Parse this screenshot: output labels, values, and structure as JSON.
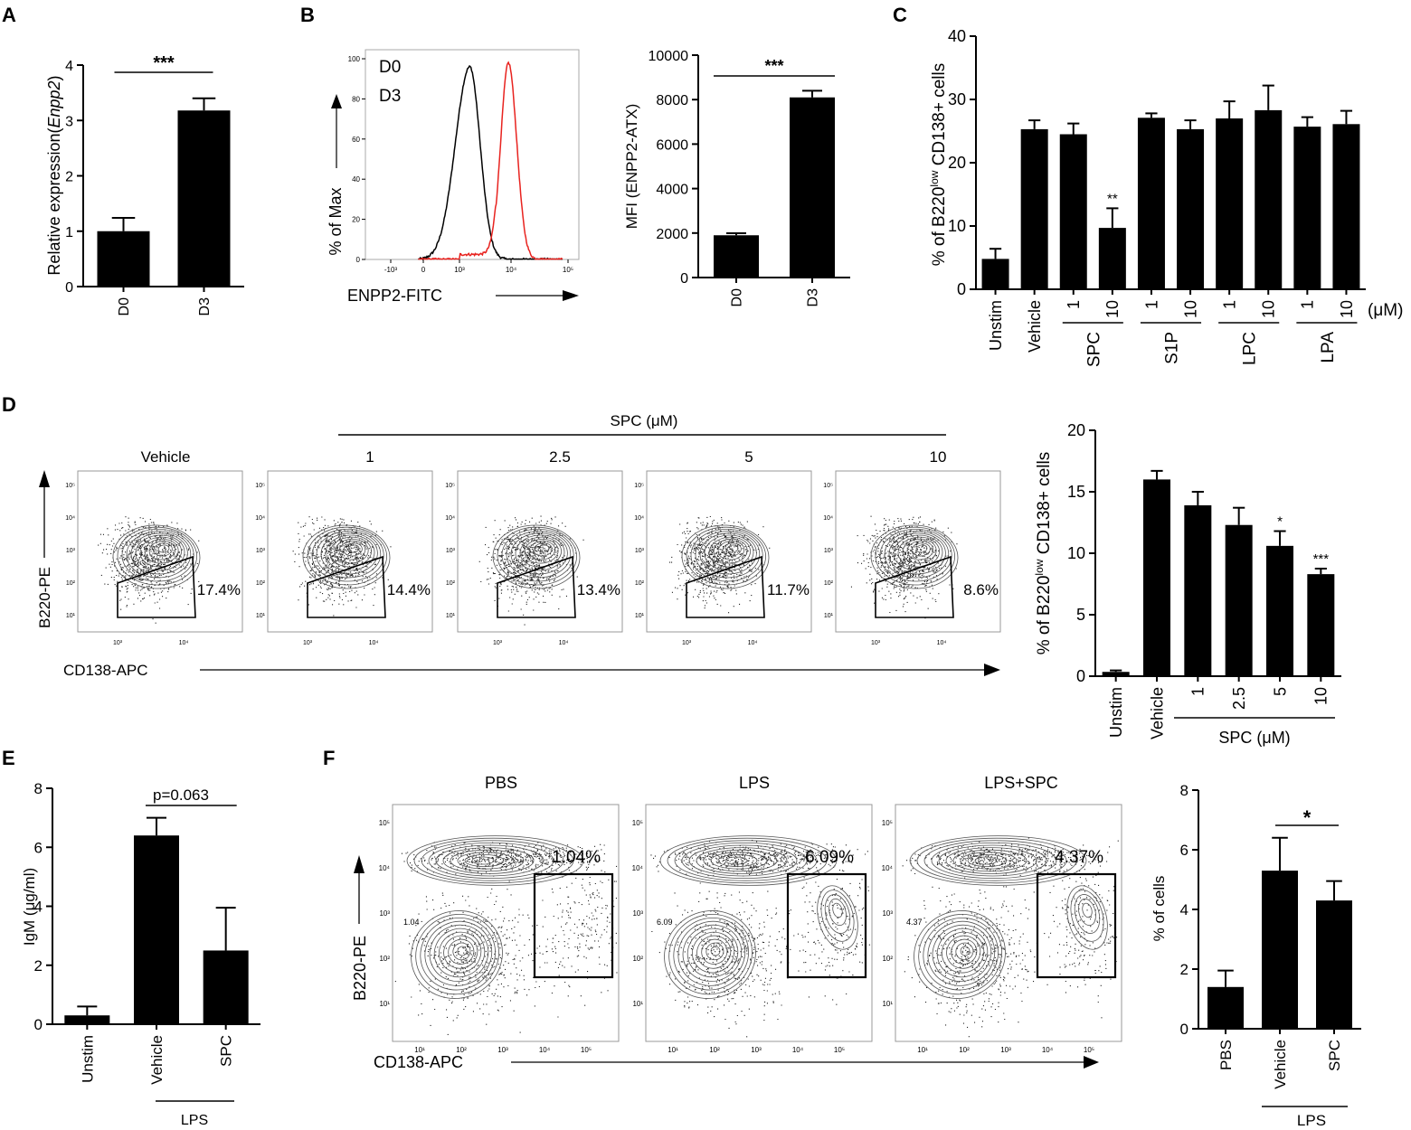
{
  "panels": {
    "A": "A",
    "B": "B",
    "C": "C",
    "D": "D",
    "E": "E",
    "F": "F"
  },
  "chart_data": [
    {
      "id": "A",
      "type": "bar",
      "categories": [
        "D0",
        "D3"
      ],
      "values": [
        1.0,
        3.18
      ],
      "errors": [
        0.24,
        0.22
      ],
      "ylabel": "Relative expression(Enpp2)",
      "ylabel_plain": "Relative expression(",
      "ylabel_italic": "Enpp2",
      "ylabel_close": ")",
      "ylim": [
        0,
        4
      ],
      "yticks": [
        "0",
        "1",
        "2",
        "3",
        "4"
      ],
      "significance": "***"
    },
    {
      "id": "B_hist",
      "type": "line",
      "legend": [
        "D0",
        "D3"
      ],
      "colors": {
        "D0": "#000000",
        "D3": "#e8231f"
      },
      "ylabel": "% of Max",
      "xlabel": "ENPP2-FITC",
      "yticks": [
        "0",
        "20",
        "40",
        "60",
        "80",
        "100"
      ],
      "xticks": [
        "-10³",
        "0",
        "10³",
        "10⁴",
        "10⁵"
      ],
      "series": [
        {
          "name": "D0",
          "peak_log": 3.2,
          "peak": 96
        },
        {
          "name": "D3",
          "peak_log": 3.95,
          "peak": 98
        }
      ]
    },
    {
      "id": "B_bar",
      "type": "bar",
      "categories": [
        "D0",
        "D3"
      ],
      "values": [
        1900,
        8100
      ],
      "errors": [
        90,
        300
      ],
      "ylabel": "MFI (ENPP2-ATX)",
      "ylim": [
        0,
        10000
      ],
      "yticks": [
        "0",
        "2000",
        "4000",
        "6000",
        "8000",
        "10000"
      ],
      "significance": "***"
    },
    {
      "id": "C",
      "type": "bar",
      "categories": [
        "Unstim",
        "Vehicle",
        "1",
        "10",
        "1",
        "10",
        "1",
        "10",
        "1",
        "10"
      ],
      "values": [
        4.8,
        25.3,
        24.5,
        9.7,
        27.1,
        25.3,
        27.0,
        28.3,
        25.7,
        26.1
      ],
      "errors": [
        1.6,
        1.4,
        1.7,
        3.1,
        0.7,
        1.4,
        2.7,
        3.9,
        1.5,
        2.1
      ],
      "stars": [
        "",
        "",
        "",
        "**",
        "",
        "",
        "",
        "",
        "",
        ""
      ],
      "groups": [
        "SPC",
        "S1P",
        "LPC",
        "LPA"
      ],
      "unit": "(μM)",
      "ylabel": "% of B220low CD138+ cells",
      "ylabel_pre": "% of B220",
      "ylabel_sup": "low",
      "ylabel_post": " CD138+ cells",
      "ylim": [
        0,
        40
      ],
      "yticks": [
        "0",
        "10",
        "20",
        "30",
        "40"
      ]
    },
    {
      "id": "D_bar",
      "type": "bar",
      "categories": [
        "Unstim",
        "Vehicle",
        "1",
        "2.5",
        "5",
        "10"
      ],
      "values": [
        0.35,
        16.0,
        13.9,
        12.3,
        10.6,
        8.3
      ],
      "errors": [
        0.12,
        0.7,
        1.1,
        1.4,
        1.2,
        0.45
      ],
      "stars": [
        "",
        "",
        "",
        "",
        "*",
        "***"
      ],
      "group": "SPC (μM)",
      "ylabel": "% of B220low CD138+ cells",
      "ylabel_pre": "% of B220",
      "ylabel_sup": "low",
      "ylabel_post": " CD138+ cells",
      "ylim": [
        0,
        20
      ],
      "yticks": [
        "0",
        "5",
        "10",
        "15",
        "20"
      ]
    },
    {
      "id": "E",
      "type": "bar",
      "categories": [
        "Unstim",
        "Vehicle",
        "SPC"
      ],
      "values": [
        0.3,
        6.4,
        2.5
      ],
      "errors": [
        0.3,
        0.6,
        1.45
      ],
      "group": "LPS",
      "pvalue": "p=0.063",
      "ylabel": "IgM (μg/ml)",
      "ylim": [
        0,
        8
      ],
      "yticks": [
        "0",
        "2",
        "4",
        "6",
        "8"
      ]
    },
    {
      "id": "F_bar",
      "type": "bar",
      "categories": [
        "PBS",
        "Vehicle",
        "SPC"
      ],
      "values": [
        1.4,
        5.3,
        4.3
      ],
      "errors": [
        0.55,
        1.1,
        0.65
      ],
      "group": "LPS",
      "significance": "*",
      "ylabel": "% of cells",
      "ylim": [
        0,
        8
      ],
      "yticks": [
        "0",
        "2",
        "4",
        "6",
        "8"
      ]
    }
  ],
  "panel_D": {
    "header": "SPC (μM)",
    "ylabel": "B220-PE",
    "xlabel": "CD138-APC",
    "plots": [
      {
        "title": "Vehicle",
        "pct": "17.4%"
      },
      {
        "title": "1",
        "pct": "14.4%"
      },
      {
        "title": "2.5",
        "pct": "13.4%"
      },
      {
        "title": "5",
        "pct": "11.7%"
      },
      {
        "title": "10",
        "pct": "8.6%"
      }
    ],
    "yticks": [
      "10⁵",
      "10⁴",
      "10³",
      "10²",
      "10¹"
    ],
    "xticks": [
      "10³",
      "10⁴"
    ]
  },
  "panel_F": {
    "ylabel": "B220-PE",
    "xlabel": "CD138-APC",
    "plots": [
      {
        "title": "PBS",
        "pct": "1.04%",
        "small": "1.04"
      },
      {
        "title": "LPS",
        "pct": "6.09%",
        "small": "6.09"
      },
      {
        "title": "LPS+SPC",
        "pct": "4.37%",
        "small": "4.37"
      }
    ],
    "yticks": [
      "10⁵",
      "10⁴",
      "10³",
      "10²",
      "10¹"
    ],
    "xticks": [
      "10¹",
      "10²",
      "10³",
      "10⁴",
      "10⁵"
    ]
  }
}
